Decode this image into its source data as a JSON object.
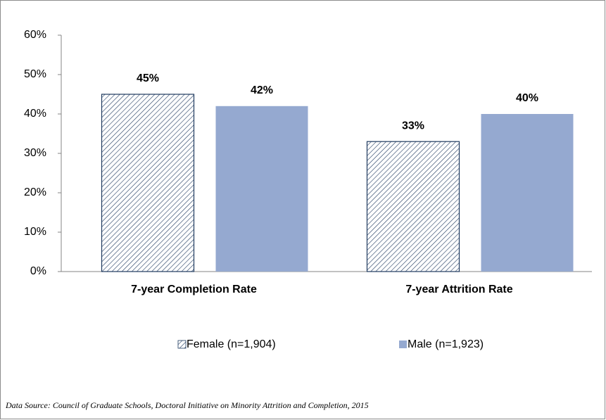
{
  "chart_data": {
    "type": "bar",
    "categories": [
      "7-year Completion Rate",
      "7-year Attrition Rate"
    ],
    "series": [
      {
        "name": "Female (n=1,904)",
        "color": "#1f3a5f",
        "hatch": true,
        "values": [
          45,
          33
        ],
        "value_labels": [
          "45%",
          "33%"
        ]
      },
      {
        "name": "Male (n=1,923)",
        "color": "#95a9d0",
        "values": [
          42,
          40
        ],
        "value_labels": [
          "42%",
          "40%"
        ]
      }
    ],
    "ylim": [
      0,
      60
    ],
    "yticks": [
      {
        "value": 0,
        "label": "0%"
      },
      {
        "value": 10,
        "label": "10%"
      },
      {
        "value": 20,
        "label": "20%"
      },
      {
        "value": 30,
        "label": "30%"
      },
      {
        "value": 40,
        "label": "40%"
      },
      {
        "value": 50,
        "label": "50%"
      },
      {
        "value": 60,
        "label": "60%"
      }
    ],
    "legend": "bottom",
    "source": "Data Source:  Council of Graduate Schools, Doctoral Initiative on Minority Attrition and Completion, 2015"
  }
}
